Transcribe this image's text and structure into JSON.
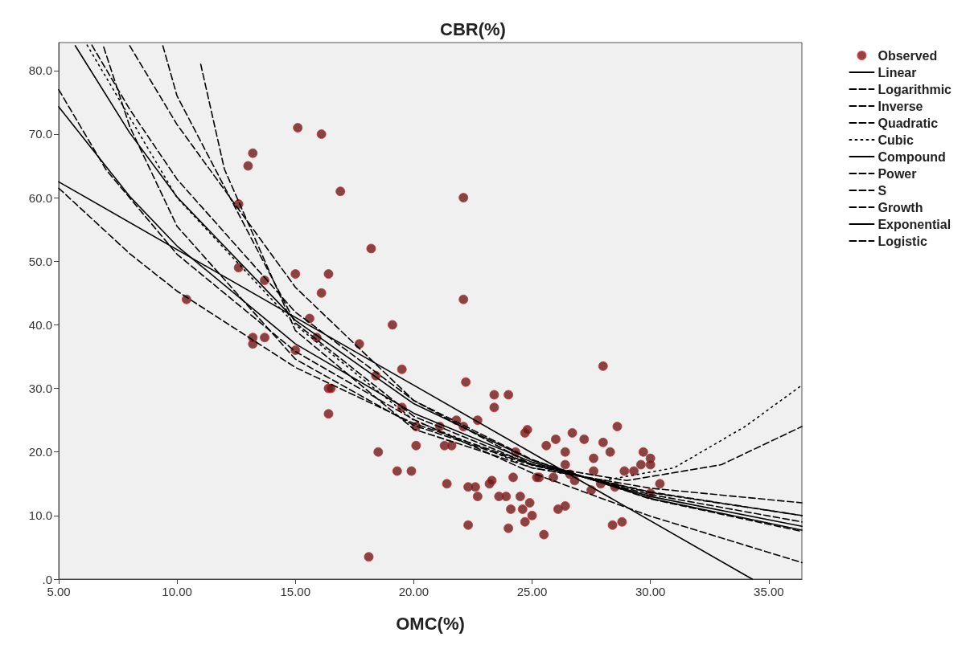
{
  "chart_data": {
    "type": "scatter",
    "title": "CBR(%)",
    "xlabel": "OMC(%)",
    "xlim": [
      5,
      36.4
    ],
    "ylim": [
      0,
      84.4
    ],
    "xticks": [
      {
        "value": 5,
        "label": "5.00"
      },
      {
        "value": 10,
        "label": "10.00"
      },
      {
        "value": 15,
        "label": "15.00"
      },
      {
        "value": 20,
        "label": "20.00"
      },
      {
        "value": 25,
        "label": "25.00"
      },
      {
        "value": 30,
        "label": "30.00"
      },
      {
        "value": 35,
        "label": "35.00"
      }
    ],
    "yticks": [
      {
        "value": 0,
        "label": ".0"
      },
      {
        "value": 10,
        "label": "10.0"
      },
      {
        "value": 20,
        "label": "20.0"
      },
      {
        "value": 30,
        "label": "30.0"
      },
      {
        "value": 40,
        "label": "40.0"
      },
      {
        "value": 50,
        "label": "50.0"
      },
      {
        "value": 60,
        "label": "60.0"
      },
      {
        "value": 70,
        "label": "70.0"
      },
      {
        "value": 80,
        "label": "80.0"
      }
    ],
    "grid": false,
    "legend": "top right",
    "series": [
      {
        "name": "Observed",
        "marker": "circle",
        "color": "#6b1a1a",
        "x": [
          10.4,
          12.6,
          13.0,
          13.2,
          12.6,
          13.2,
          13.2,
          13.7,
          13.7,
          15.1,
          16.1,
          15.0,
          15.0,
          16.1,
          16.4,
          15.6,
          15.9,
          16.9,
          16.4,
          16.5,
          16.4,
          17.7,
          18.2,
          18.1,
          18.4,
          18.5,
          19.1,
          19.3,
          19.5,
          19.5,
          20.1,
          20.1,
          21.1,
          21.3,
          21.6,
          21.4,
          21.8,
          22.1,
          22.1,
          22.1,
          22.2,
          22.3,
          22.3,
          22.6,
          22.7,
          22.7,
          23.2,
          23.3,
          23.4,
          23.4,
          23.6,
          23.9,
          24.0,
          24.0,
          24.1,
          24.2,
          24.5,
          24.7,
          24.8,
          24.6,
          24.7,
          24.9,
          25.0,
          25.3,
          25.5,
          25.6,
          25.9,
          26.0,
          26.1,
          26.4,
          26.4,
          26.4,
          26.6,
          26.7,
          26.8,
          27.2,
          27.5,
          27.6,
          27.6,
          28.0,
          28.0,
          28.3,
          28.4,
          28.6,
          28.8,
          28.9,
          29.3,
          29.6,
          29.7,
          30.0,
          30.0,
          30.0,
          30.4,
          27.9,
          28.5,
          25.2,
          24.3,
          19.9
        ],
        "values": [
          44,
          59,
          65,
          67,
          49,
          38,
          37,
          38,
          47,
          71,
          70,
          48,
          36,
          45,
          48,
          41,
          38,
          61,
          30,
          30,
          26,
          37,
          52,
          3.5,
          32,
          20,
          40,
          17,
          33,
          27,
          24,
          21,
          24,
          21,
          21,
          15,
          25,
          24,
          60,
          44,
          31,
          8.5,
          14.5,
          14.5,
          13,
          25,
          15,
          15.5,
          27,
          29,
          13,
          13,
          29,
          8,
          11,
          16,
          13,
          23,
          23.5,
          11,
          9,
          12,
          10,
          16,
          7,
          21,
          16,
          22,
          11,
          11.5,
          20,
          18,
          16.5,
          23,
          15.5,
          22,
          14,
          17,
          19,
          21.5,
          33.5,
          20,
          8.5,
          24,
          9,
          17,
          17,
          18,
          20,
          19,
          18,
          13.5,
          15,
          15,
          14.5,
          16,
          20,
          17
        ]
      },
      {
        "name": "Linear",
        "type": "line",
        "line_style": "solid",
        "color": "#000000",
        "x": [
          5,
          34.3
        ],
        "values": [
          62.5,
          0
        ]
      },
      {
        "name": "Logarithmic",
        "type": "line",
        "line_style": "dashed",
        "color": "#000000",
        "x": [
          5,
          7,
          10,
          15,
          20,
          25,
          30,
          36.4
        ],
        "values": [
          77,
          64.4,
          51.1,
          35.8,
          25.1,
          16.7,
          9.9,
          2.6
        ]
      },
      {
        "name": "Inverse",
        "type": "line",
        "line_style": "dashed",
        "color": "#000000",
        "x": [
          6.9,
          8,
          10,
          15,
          20,
          25,
          30,
          36.4
        ],
        "values": [
          83.7,
          71.2,
          55.5,
          34.6,
          24.2,
          17.9,
          13.7,
          10
        ]
      },
      {
        "name": "Quadratic",
        "type": "line",
        "line_style": "dashed",
        "color": "#000000",
        "x": [
          8,
          10,
          15,
          20,
          25,
          29,
          33,
          36.4
        ],
        "values": [
          83.9,
          71.5,
          45.9,
          28.1,
          18,
          15.5,
          18,
          24
        ]
      },
      {
        "name": "Cubic",
        "type": "line",
        "line_style": "dotted",
        "color": "#000000",
        "x": [
          6.2,
          10,
          15,
          20,
          25,
          28,
          31,
          34,
          36.4
        ],
        "values": [
          84,
          60,
          40,
          25,
          17.5,
          15.5,
          17.5,
          24,
          30.5
        ]
      },
      {
        "name": "Compound",
        "type": "line",
        "line_style": "solid",
        "color": "#000000",
        "x": [
          5.7,
          8,
          10,
          15,
          20,
          25,
          30,
          36.4
        ],
        "values": [
          83.9,
          70.2,
          60.1,
          40.7,
          27.6,
          18.7,
          12.7,
          7.7
        ]
      },
      {
        "name": "Power",
        "type": "line",
        "line_style": "dashed",
        "color": "#000000",
        "x": [
          9.4,
          10,
          15,
          20,
          25,
          30,
          36.4
        ],
        "values": [
          83.9,
          76,
          40.3,
          25.6,
          18,
          13.6,
          10
        ]
      },
      {
        "name": "S",
        "type": "line",
        "line_style": "dashed",
        "color": "#000000",
        "x": [
          11,
          12,
          15,
          20,
          25,
          30,
          36.4
        ],
        "values": [
          81,
          64.5,
          39.1,
          23.6,
          17.5,
          14.3,
          12
        ]
      },
      {
        "name": "Growth",
        "type": "line",
        "line_style": "dashed",
        "color": "#000000",
        "x": [
          5,
          8,
          10,
          15,
          20,
          25,
          30,
          36.4
        ],
        "values": [
          61.5,
          51.2,
          45.3,
          33.3,
          24.5,
          18.1,
          13.3,
          9
        ]
      },
      {
        "name": "Exponential",
        "type": "line",
        "line_style": "solid",
        "color": "#000000",
        "x": [
          5,
          8,
          10,
          15,
          20,
          25,
          30,
          36.4
        ],
        "values": [
          74.3,
          60.2,
          52.4,
          37,
          26.1,
          18.4,
          13,
          8.3
        ]
      },
      {
        "name": "Logistic",
        "type": "line",
        "line_style": "dashed",
        "color": "#000000",
        "x": [
          6.4,
          8,
          10,
          15,
          20,
          25,
          30,
          36.4
        ],
        "values": [
          84,
          73.9,
          62.9,
          42,
          28.1,
          18.8,
          12.6,
          7.5
        ]
      }
    ]
  }
}
